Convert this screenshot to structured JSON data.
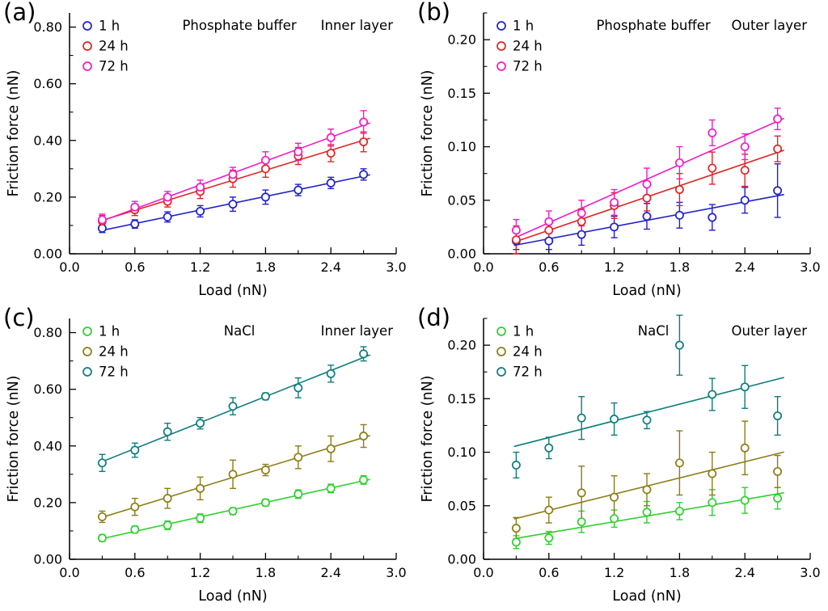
{
  "style": {
    "background": "#ffffff",
    "axis_color": "#000000"
  },
  "chart_data": [
    {
      "type": "scatter",
      "panel_label": "(a)",
      "annotations": {
        "center": "Phosphate buffer",
        "right": "Inner layer"
      },
      "xlabel": "Load (nN)",
      "ylabel": "Friction force (nN)",
      "xlim": [
        0.0,
        3.0
      ],
      "ylim": [
        0.0,
        0.85
      ],
      "xticks": [
        0.0,
        0.6,
        1.2,
        1.8,
        2.4,
        3.0
      ],
      "yticks": [
        0.0,
        0.2,
        0.4,
        0.6,
        0.8
      ],
      "x_minor": 0.3,
      "y_minor": 0.1,
      "x_decimals": 1,
      "y_decimals": 2,
      "grid": false,
      "legend_position": "top-left",
      "x": [
        0.3,
        0.6,
        0.9,
        1.2,
        1.5,
        1.8,
        2.1,
        2.4,
        2.7
      ],
      "series": [
        {
          "name": "1 h",
          "color": "#2020cc",
          "values": [
            0.09,
            0.105,
            0.13,
            0.15,
            0.175,
            0.2,
            0.225,
            0.25,
            0.28
          ],
          "errors": [
            0.015,
            0.015,
            0.018,
            0.02,
            0.025,
            0.025,
            0.02,
            0.02,
            0.02
          ]
        },
        {
          "name": "24 h",
          "color": "#e02424",
          "values": [
            0.115,
            0.155,
            0.185,
            0.22,
            0.265,
            0.3,
            0.345,
            0.355,
            0.395
          ],
          "errors": [
            0.02,
            0.02,
            0.02,
            0.025,
            0.03,
            0.03,
            0.03,
            0.03,
            0.035
          ]
        },
        {
          "name": "72 h",
          "color": "#f31bc3",
          "values": [
            0.12,
            0.165,
            0.2,
            0.235,
            0.28,
            0.33,
            0.36,
            0.41,
            0.465
          ],
          "errors": [
            0.02,
            0.02,
            0.02,
            0.025,
            0.025,
            0.03,
            0.03,
            0.03,
            0.04
          ]
        }
      ]
    },
    {
      "type": "scatter",
      "panel_label": "(b)",
      "annotations": {
        "center": "Phosphate buffer",
        "right": "Outer layer"
      },
      "xlabel": "Load (nN)",
      "ylabel": "Friction force (nN)",
      "xlim": [
        0.0,
        3.0
      ],
      "ylim": [
        0.0,
        0.225
      ],
      "xticks": [
        0.0,
        0.6,
        1.2,
        1.8,
        2.4,
        3.0
      ],
      "yticks": [
        0.0,
        0.05,
        0.1,
        0.15,
        0.2
      ],
      "x_minor": 0.3,
      "y_minor": 0.025,
      "x_decimals": 1,
      "y_decimals": 2,
      "grid": false,
      "legend_position": "top-left",
      "x": [
        0.3,
        0.6,
        0.9,
        1.2,
        1.5,
        1.8,
        2.1,
        2.4,
        2.7
      ],
      "series": [
        {
          "name": "1 h",
          "color": "#2020cc",
          "values": [
            0.012,
            0.012,
            0.018,
            0.025,
            0.035,
            0.036,
            0.034,
            0.05,
            0.059
          ],
          "errors": [
            0.008,
            0.008,
            0.01,
            0.01,
            0.012,
            0.012,
            0.012,
            0.012,
            0.025
          ]
        },
        {
          "name": "24 h",
          "color": "#e02424",
          "values": [
            0.013,
            0.022,
            0.03,
            0.045,
            0.052,
            0.06,
            0.08,
            0.078,
            0.098
          ],
          "errors": [
            0.013,
            0.01,
            0.012,
            0.012,
            0.012,
            0.015,
            0.015,
            0.015,
            0.012
          ]
        },
        {
          "name": "72 h",
          "color": "#f31bc3",
          "values": [
            0.022,
            0.03,
            0.038,
            0.048,
            0.065,
            0.085,
            0.113,
            0.1,
            0.126
          ],
          "errors": [
            0.01,
            0.01,
            0.012,
            0.012,
            0.015,
            0.015,
            0.012,
            0.012,
            0.01
          ]
        }
      ]
    },
    {
      "type": "scatter",
      "panel_label": "(c)",
      "annotations": {
        "center": "NaCl",
        "right": "Inner layer"
      },
      "xlabel": "Load (nN)",
      "ylabel": "Friction force (nN)",
      "xlim": [
        0.0,
        3.0
      ],
      "ylim": [
        0.0,
        0.85
      ],
      "xticks": [
        0.0,
        0.6,
        1.2,
        1.8,
        2.4,
        3.0
      ],
      "yticks": [
        0.0,
        0.2,
        0.4,
        0.6,
        0.8
      ],
      "x_minor": 0.3,
      "y_minor": 0.1,
      "x_decimals": 1,
      "y_decimals": 2,
      "grid": false,
      "legend_position": "top-left",
      "x": [
        0.3,
        0.6,
        0.9,
        1.2,
        1.5,
        1.8,
        2.1,
        2.4,
        2.7
      ],
      "series": [
        {
          "name": "1 h",
          "color": "#2ed02e",
          "values": [
            0.075,
            0.105,
            0.12,
            0.145,
            0.17,
            0.2,
            0.23,
            0.25,
            0.28
          ],
          "errors": [
            0.012,
            0.012,
            0.015,
            0.015,
            0.012,
            0.012,
            0.015,
            0.015,
            0.015
          ]
        },
        {
          "name": "24 h",
          "color": "#8b7d15",
          "values": [
            0.15,
            0.185,
            0.215,
            0.25,
            0.3,
            0.315,
            0.36,
            0.39,
            0.435
          ],
          "errors": [
            0.02,
            0.03,
            0.035,
            0.04,
            0.05,
            0.02,
            0.04,
            0.045,
            0.04
          ]
        },
        {
          "name": "72 h",
          "color": "#0e7c7c",
          "values": [
            0.34,
            0.385,
            0.45,
            0.48,
            0.54,
            0.575,
            0.605,
            0.655,
            0.725
          ],
          "errors": [
            0.03,
            0.025,
            0.03,
            0.02,
            0.03,
            0.012,
            0.035,
            0.03,
            0.025
          ]
        }
      ]
    },
    {
      "type": "scatter",
      "panel_label": "(d)",
      "annotations": {
        "center": "NaCl",
        "right": "Outer layer"
      },
      "xlabel": "Load (nN)",
      "ylabel": "Friction force (nN)",
      "xlim": [
        0.0,
        3.0
      ],
      "ylim": [
        0.0,
        0.225
      ],
      "xticks": [
        0.0,
        0.6,
        1.2,
        1.8,
        2.4,
        3.0
      ],
      "yticks": [
        0.0,
        0.05,
        0.1,
        0.15,
        0.2
      ],
      "x_minor": 0.3,
      "y_minor": 0.025,
      "x_decimals": 1,
      "y_decimals": 2,
      "grid": false,
      "legend_position": "top-left",
      "x": [
        0.3,
        0.6,
        0.9,
        1.2,
        1.5,
        1.8,
        2.1,
        2.4,
        2.7
      ],
      "series": [
        {
          "name": "1 h",
          "color": "#2ed02e",
          "values": [
            0.016,
            0.02,
            0.035,
            0.038,
            0.044,
            0.045,
            0.053,
            0.055,
            0.057
          ],
          "errors": [
            0.006,
            0.006,
            0.01,
            0.008,
            0.01,
            0.008,
            0.012,
            0.012,
            0.01
          ]
        },
        {
          "name": "24 h",
          "color": "#8b7d15",
          "values": [
            0.029,
            0.046,
            0.062,
            0.058,
            0.065,
            0.09,
            0.08,
            0.104,
            0.082
          ],
          "errors": [
            0.01,
            0.012,
            0.025,
            0.02,
            0.015,
            0.03,
            0.02,
            0.025,
            0.015
          ]
        },
        {
          "name": "72 h",
          "color": "#0e7c7c",
          "values": [
            0.088,
            0.104,
            0.132,
            0.131,
            0.13,
            0.2,
            0.154,
            0.161,
            0.134
          ],
          "errors": [
            0.012,
            0.01,
            0.02,
            0.015,
            0.008,
            0.028,
            0.015,
            0.02,
            0.018
          ]
        }
      ]
    }
  ]
}
